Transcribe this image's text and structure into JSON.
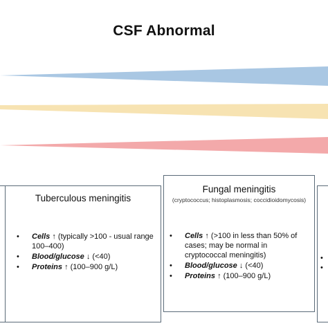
{
  "title": "CSF Abnormal",
  "colors": {
    "blue": "#a9c7e3",
    "yellow": "#f7e3b2",
    "red": "#f3a9aa",
    "border": "#5a6a78"
  },
  "tuberculous": {
    "heading": "Tuberculous meningitis",
    "items": [
      {
        "term": "Cells",
        "rest": "↑ (typically >100 - usual range 100–400)"
      },
      {
        "term": "Blood/glucose",
        "rest": "↓ (<40)"
      },
      {
        "term": "Proteins",
        "rest": "↑ (100–900 g/L)"
      }
    ]
  },
  "fungal": {
    "heading": "Fungal meningitis",
    "subheading": "(cryptococcus; histoplasmosis; coccidioidomycosis)",
    "items": [
      {
        "term": "Cells",
        "rest": "↑ (>100 in less than 50% of cases; may be normal in cryptococcal meningitis)"
      },
      {
        "term": "Blood/glucose",
        "rest": "↓ (<40)"
      },
      {
        "term": "Proteins",
        "rest": "↑ (100–900 g/L)"
      }
    ]
  },
  "bullet": "•"
}
